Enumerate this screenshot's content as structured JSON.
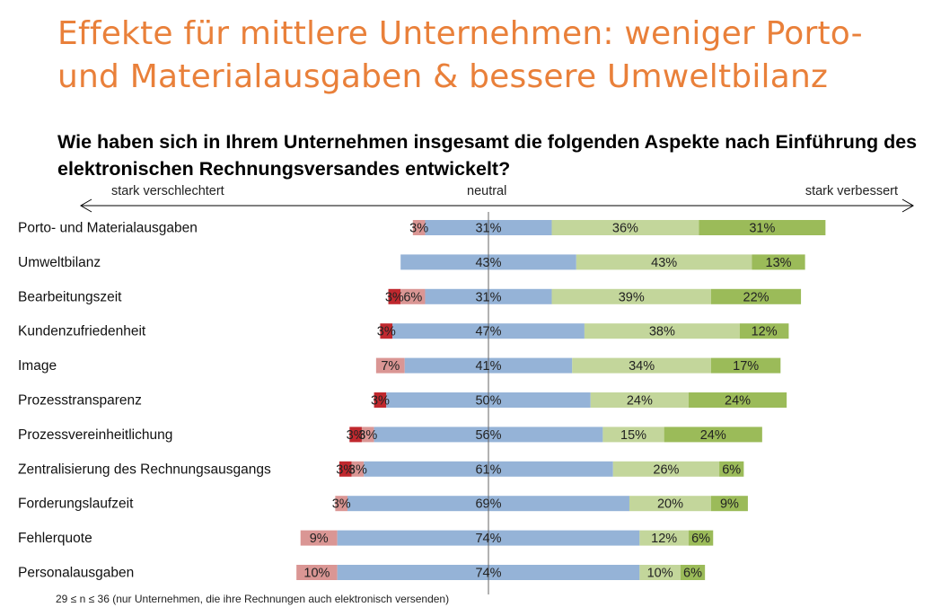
{
  "title": "Effekte für mittlere Unternehmen: weniger Porto- und Materialausgaben & bessere Umweltbilanz",
  "question": "Wie haben sich in Ihrem Unternehmen insgesamt die folgenden Aspekte nach Einführung des elektronischen Rechnungsversandes entwickelt?",
  "scale": {
    "left": "stark verschlechtert",
    "center": "neutral",
    "right": "stark verbessert"
  },
  "footnote": "29 ≤ n ≤ 36 (nur Unternehmen, die ihre Rechnungen auch elektronisch versenden)",
  "colors": {
    "stark_verschlechtert": "#C0282E",
    "verschlechtert": "#DA9694",
    "neutral": "#95B3D7",
    "verbessert": "#C3D69B",
    "stark_verbessert": "#9BBB59"
  },
  "chart_data": {
    "type": "bar",
    "orientation": "horizontal",
    "layout": "diverging-stacked",
    "categories": [
      "Porto- und Materialausgaben",
      "Umweltbilanz",
      "Bearbeitungszeit",
      "Kundenzufriedenheit",
      "Image",
      "Prozesstransparenz",
      "Prozessvereinheitlichung",
      "Zentralisierung des Rechnungsausgangs",
      "Forderungslaufzeit",
      "Fehlerquote",
      "Personalausgaben"
    ],
    "series": [
      {
        "key": "stark_verschlechtert",
        "values": [
          0,
          0,
          3,
          3,
          0,
          3,
          3,
          3,
          0,
          0,
          0
        ]
      },
      {
        "key": "verschlechtert",
        "values": [
          3,
          0,
          6,
          0,
          7,
          0,
          3,
          3,
          3,
          9,
          10
        ]
      },
      {
        "key": "neutral",
        "values": [
          31,
          43,
          31,
          47,
          41,
          50,
          56,
          61,
          69,
          74,
          74
        ]
      },
      {
        "key": "verbessert",
        "values": [
          36,
          43,
          39,
          38,
          34,
          24,
          15,
          26,
          20,
          12,
          10
        ]
      },
      {
        "key": "stark_verbessert",
        "values": [
          31,
          13,
          22,
          12,
          17,
          24,
          24,
          6,
          9,
          6,
          6
        ]
      }
    ],
    "unit": "%",
    "center": "neutral"
  }
}
